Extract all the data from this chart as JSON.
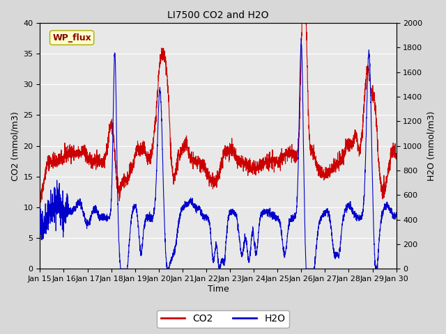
{
  "title": "LI7500 CO2 and H2O",
  "xlabel": "Time",
  "ylabel_left": "CO2 (mmol/m3)",
  "ylabel_right": "H2O (mmol/m3)",
  "annotation": "WP_flux",
  "x_tick_labels": [
    "Jan 15",
    "Jan 16",
    "Jan 17",
    "Jan 18",
    "Jan 19",
    "Jan 20",
    "Jan 21",
    "Jan 22",
    "Jan 23",
    "Jan 24",
    "Jan 25",
    "Jan 26",
    "Jan 27",
    "Jan 28",
    "Jan 29",
    "Jan 30"
  ],
  "ylim_left": [
    0,
    40
  ],
  "ylim_right": [
    0,
    2000
  ],
  "yticks_left": [
    0,
    5,
    10,
    15,
    20,
    25,
    30,
    35,
    40
  ],
  "yticks_right": [
    0,
    200,
    400,
    600,
    800,
    1000,
    1200,
    1400,
    1600,
    1800,
    2000
  ],
  "bg_color": "#d8d8d8",
  "plot_bg_color": "#e8e8e8",
  "co2_color": "#cc0000",
  "h2o_color": "#0000cc",
  "annotation_bg": "#ffffcc",
  "annotation_text_color": "#880000",
  "line_width": 0.8,
  "n_points": 3000,
  "seed": 42
}
